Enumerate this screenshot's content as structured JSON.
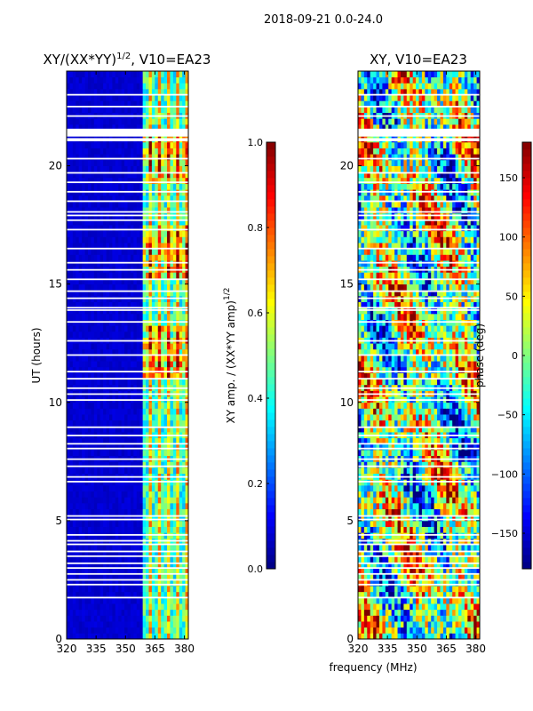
{
  "suptitle": "2018-09-21 0.0-24.0",
  "chart_data": [
    {
      "type": "heatmap",
      "title_main": "XY/(XX*YY)",
      "title_sup": "1/2",
      "title_rest": ", V10=EA23",
      "xlabel": "frequency (MHz)",
      "ylabel": "UT (hours)",
      "xlim": [
        320,
        382
      ],
      "ylim": [
        0,
        24
      ],
      "xticks": [
        320,
        335,
        350,
        365,
        380
      ],
      "yticks": [
        0,
        5,
        10,
        15,
        20
      ],
      "colormap": "jet",
      "colorbar": {
        "label_main": "XY amp. / (XX*YY amp)",
        "label_sup": "1/2",
        "range": [
          0.0,
          1.0
        ],
        "ticks": [
          "0.0",
          "0.2",
          "0.4",
          "0.6",
          "0.8",
          "1.0"
        ]
      }
    },
    {
      "type": "heatmap",
      "title": "XY, V10=EA23",
      "xlabel": "frequency (MHz)",
      "ylabel": "",
      "xlim": [
        320,
        382
      ],
      "ylim": [
        0,
        24
      ],
      "xticks": [
        320,
        335,
        350,
        365,
        380
      ],
      "yticks": [
        0,
        5,
        10,
        15,
        20
      ],
      "colormap": "jet",
      "colorbar": {
        "label": "phase (deg)",
        "range": [
          -180,
          180
        ],
        "ticks": [
          "150",
          "100",
          "50",
          "0",
          "−50",
          "−100",
          "−150"
        ]
      }
    }
  ],
  "flagged_hours": [
    1.75,
    2.3,
    2.5,
    2.75,
    3.0,
    3.2,
    3.5,
    3.7,
    4.0,
    4.15,
    4.4,
    5.05,
    5.2,
    6.65,
    6.85,
    7.3,
    7.6,
    8.05,
    8.25,
    8.6,
    8.95,
    10.1,
    10.35,
    10.6,
    11.0,
    11.3,
    12.0,
    12.6,
    13.4,
    13.9,
    14.0,
    14.4,
    14.7,
    15.2,
    15.6,
    15.9,
    16.5,
    17.3,
    17.7,
    17.9,
    18.05,
    18.5,
    18.9,
    19.3,
    19.7,
    20.3,
    21.1,
    21.3,
    21.4,
    21.5,
    22.1,
    22.5,
    23.0
  ]
}
